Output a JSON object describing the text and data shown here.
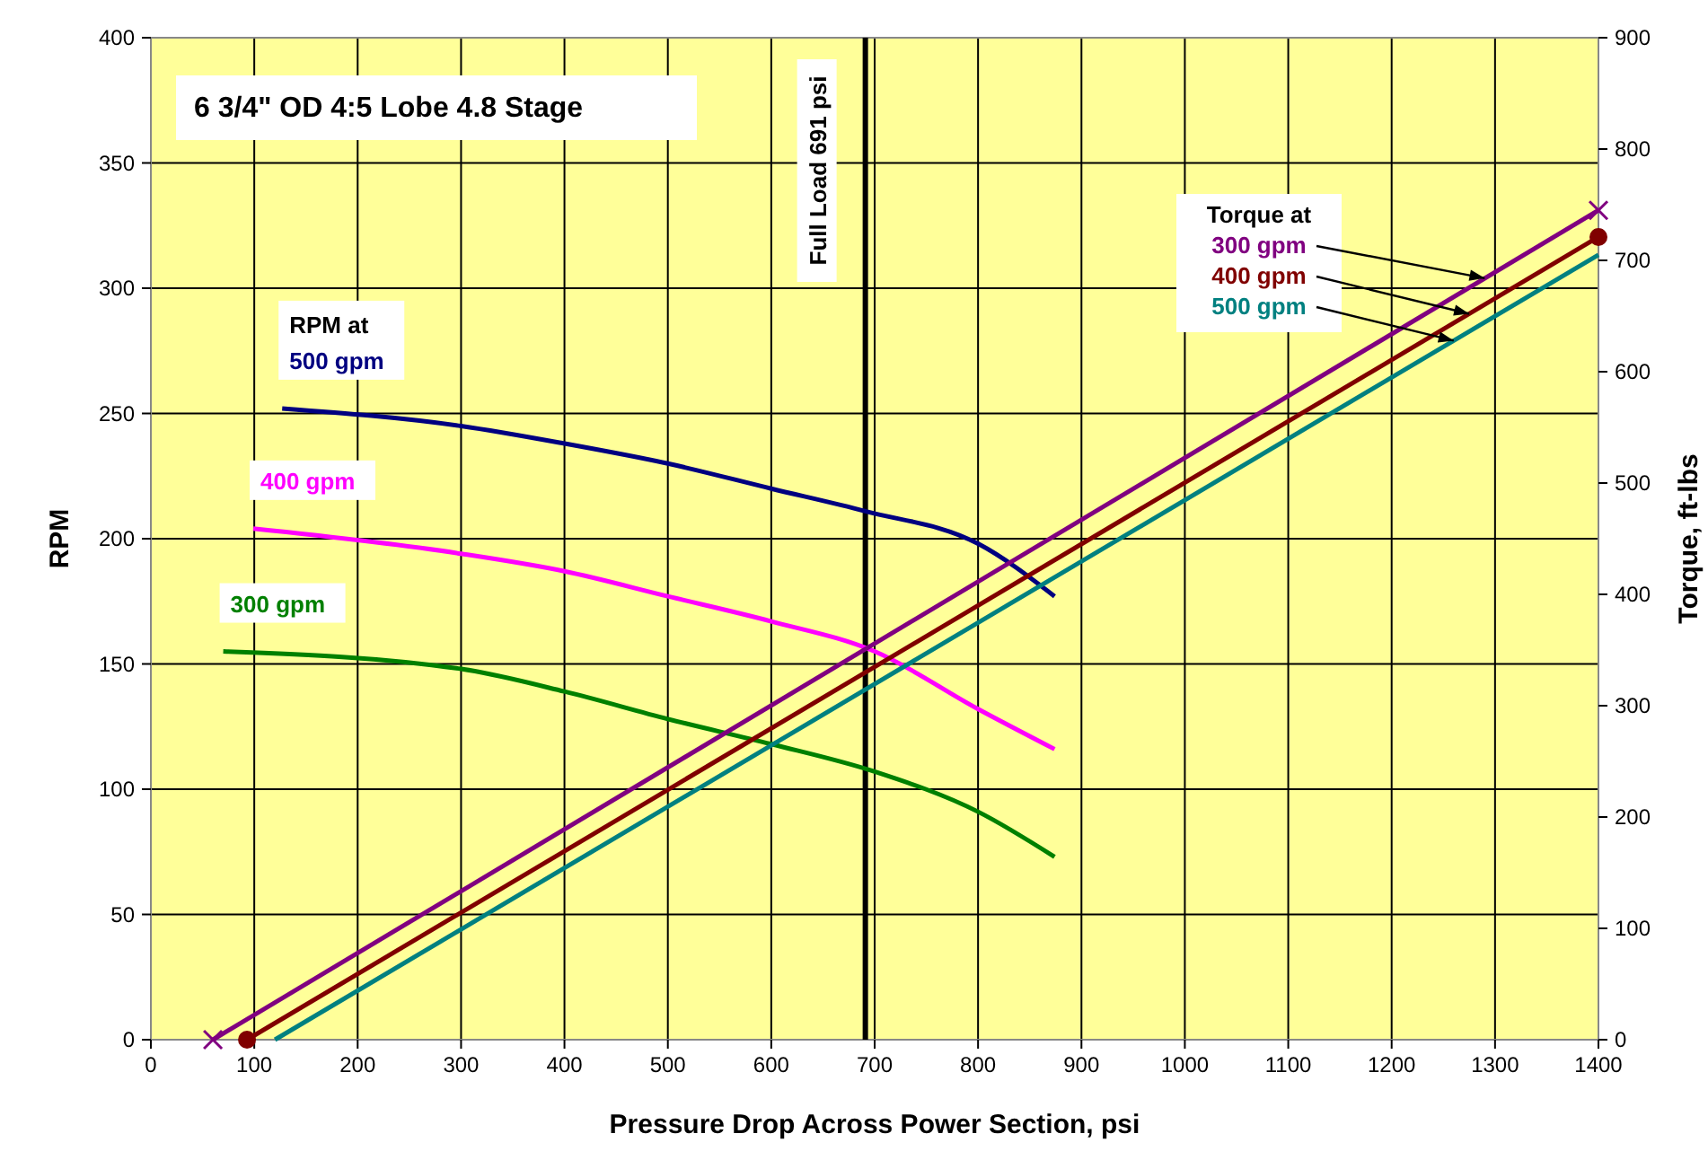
{
  "chart_data": {
    "type": "line",
    "title": "6 3/4\" OD 4:5 Lobe 4.8 Stage",
    "xlabel": "Pressure Drop Across Power Section, psi",
    "ylabel": "RPM",
    "y2label": "Torque, ft-lbs",
    "xlim": [
      0,
      1400
    ],
    "xticks": [
      0,
      100,
      200,
      300,
      400,
      500,
      600,
      700,
      800,
      900,
      1000,
      1100,
      1200,
      1300,
      1400
    ],
    "ylim": [
      0,
      400
    ],
    "yticks": [
      0,
      50,
      100,
      150,
      200,
      250,
      300,
      350,
      400
    ],
    "y2lim": [
      0,
      900
    ],
    "y2ticks": [
      0,
      100,
      200,
      300,
      400,
      500,
      600,
      700,
      800,
      900
    ],
    "grid": true,
    "line_style": "solid",
    "annotations": [
      "RPM at",
      {
        "text": "Torque at",
        "x": 1290,
        "y": 304
      }
    ],
    "ref_lines": [
      {
        "axis": "x",
        "value": 691,
        "label": "Full Load 691 psi",
        "color": "#000000"
      }
    ],
    "series": [
      {
        "name": "500 gpm",
        "color": "#000080",
        "marker": "none",
        "x": [
          127,
          300,
          400,
          500,
          600,
          691,
          800,
          874
        ],
        "values": [
          252,
          245,
          238,
          230,
          220,
          211,
          198,
          177
        ]
      },
      {
        "name": "400 gpm",
        "color": "#ff00ff",
        "marker": "none",
        "x": [
          99,
          300,
          400,
          500,
          600,
          700,
          800,
          874
        ],
        "values": [
          204,
          194,
          187,
          177,
          167,
          155,
          132,
          116
        ]
      },
      {
        "name": "300 gpm",
        "color": "#008000",
        "marker": "none",
        "x": [
          70,
          300,
          400,
          500,
          600,
          700,
          800,
          874
        ],
        "values": [
          155,
          148,
          139,
          128,
          118,
          107,
          91,
          73
        ]
      },
      {
        "name": "300 gpm",
        "color": "#800080",
        "axis": "y2",
        "marker": "cross",
        "x": [
          60,
          1400
        ],
        "values": [
          0,
          745
        ]
      },
      {
        "name": "400 gpm",
        "color": "#800000",
        "axis": "y2",
        "marker": "circle",
        "x": [
          93,
          1400
        ],
        "values": [
          0,
          721
        ]
      },
      {
        "name": "500 gpm",
        "color": "#008080",
        "axis": "y2",
        "marker": "none",
        "x": [
          120,
          1400
        ],
        "values": [
          0,
          705
        ]
      }
    ]
  }
}
